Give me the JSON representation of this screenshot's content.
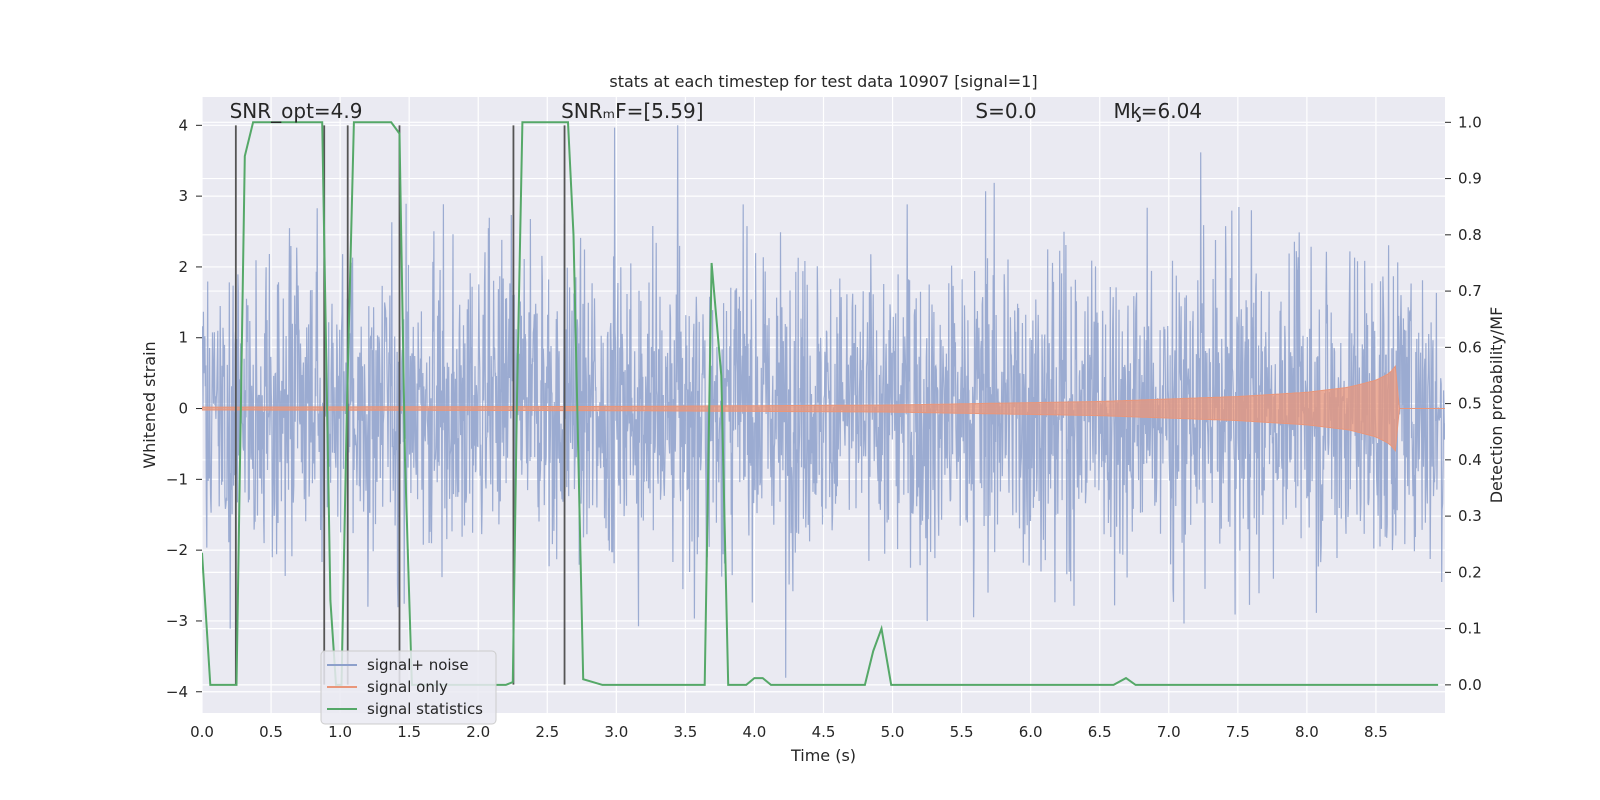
{
  "chart_data": {
    "type": "line",
    "title": "stats at each timestep for test data 10907 [signal=1]",
    "xlabel": "Time (s)",
    "ylabel": "Whitened strain",
    "ylabel_right": "Detection probability/MF",
    "xlim": [
      0.0,
      9.0
    ],
    "ylim": [
      -4.3,
      4.4
    ],
    "ylim_right": [
      -0.05,
      1.045
    ],
    "x_ticks": [
      "0.0",
      "0.5",
      "1.0",
      "1.5",
      "2.0",
      "2.5",
      "3.0",
      "3.5",
      "4.0",
      "4.5",
      "5.0",
      "5.5",
      "6.0",
      "6.5",
      "7.0",
      "7.5",
      "8.0",
      "8.5"
    ],
    "y_ticks": [
      "−4",
      "−3",
      "−2",
      "−1",
      "0",
      "1",
      "2",
      "3",
      "4"
    ],
    "y_right_ticks": [
      "0.0",
      "0.1",
      "0.2",
      "0.3",
      "0.4",
      "0.5",
      "0.6",
      "0.7",
      "0.8",
      "0.9",
      "1.0"
    ],
    "annotations": [
      {
        "text": "SNR_opt=4.9",
        "x": 0.2,
        "y": 4.1
      },
      {
        "text": "SNRₘF=[5.59]",
        "x": 2.6,
        "y": 4.1
      },
      {
        "text": "S=0.0",
        "x": 5.6,
        "y": 4.1
      },
      {
        "text": "Mᶄ=6.04",
        "x": 6.6,
        "y": 4.1
      }
    ],
    "series": [
      {
        "name": "signal+ noise",
        "color": "#8da0cb",
        "description": "whitened noisy strain, amplitude roughly within ±3 with spikes to ±4"
      },
      {
        "name": "signal only",
        "color": "#e9967a",
        "envelope": {
          "x": [
            0.0,
            3.0,
            5.0,
            6.5,
            7.5,
            8.0,
            8.3,
            8.5,
            8.6,
            8.65,
            8.66,
            9.0
          ],
          "amp": [
            0.02,
            0.03,
            0.05,
            0.1,
            0.17,
            0.23,
            0.3,
            0.4,
            0.5,
            0.62,
            0.0,
            0.0
          ]
        }
      },
      {
        "name": "signal statistics",
        "color": "#55a868",
        "x": [
          0.0,
          0.06,
          0.24,
          0.25,
          0.31,
          0.37,
          0.87,
          0.93,
          0.97,
          1.01,
          1.05,
          1.1,
          1.15,
          1.37,
          1.43,
          1.47,
          1.52,
          2.2,
          2.25,
          2.28,
          2.32,
          2.62,
          2.65,
          2.69,
          2.76,
          2.9,
          3.0,
          3.5,
          3.64,
          3.69,
          3.76,
          3.81,
          3.94,
          4.0,
          4.06,
          4.12,
          4.3,
          4.6,
          4.8,
          4.86,
          4.92,
          4.99,
          5.05,
          5.5,
          6.5,
          6.6,
          6.69,
          6.76,
          7.0,
          8.0,
          8.95
        ],
        "values": [
          0.235,
          0.0,
          0.0,
          0.0,
          0.94,
          1.0,
          1.0,
          0.15,
          0.0,
          0.0,
          0.5,
          1.0,
          1.0,
          1.0,
          0.98,
          0.4,
          0.0,
          0.0,
          0.005,
          0.5,
          1.0,
          1.0,
          1.0,
          0.8,
          0.01,
          0.0,
          0.0,
          0.0,
          0.0,
          0.75,
          0.55,
          0.0,
          0.0,
          0.012,
          0.012,
          0.0,
          0.0,
          0.0,
          0.0,
          0.06,
          0.1,
          0.0,
          0.0,
          0.0,
          0.0,
          0.0,
          0.012,
          0.0,
          0.0,
          0.0,
          0.0
        ]
      }
    ],
    "vertical_markers": [
      {
        "x": 0.245,
        "from": -3.9,
        "to": 4.0
      },
      {
        "x": 0.885,
        "from": -3.9,
        "to": 4.0
      },
      {
        "x": 1.055,
        "from": -3.9,
        "to": 4.0
      },
      {
        "x": 1.43,
        "from": -3.9,
        "to": 4.0
      },
      {
        "x": 2.255,
        "from": -3.9,
        "to": 4.0
      },
      {
        "x": 2.625,
        "from": -3.9,
        "to": 4.0
      }
    ],
    "legend": {
      "placement": "lower-left",
      "entries": [
        "signal+ noise",
        "signal only",
        "signal statistics"
      ]
    },
    "grid": true
  }
}
